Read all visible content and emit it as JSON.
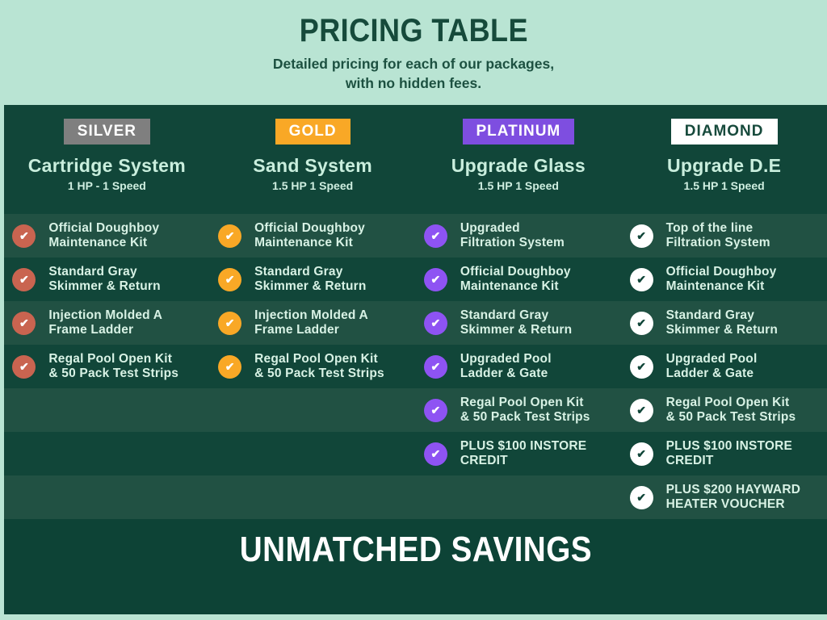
{
  "header": {
    "title": "PRICING TABLE",
    "subtitle_line1": "Detailed pricing for each of our packages,",
    "subtitle_line2": "with no hidden fees."
  },
  "banner": {
    "text": "UNMATCHED SAVINGS"
  },
  "icons": {
    "check": "✔"
  },
  "colors": {
    "page_bg": "#b9e4d3",
    "panel_bg": "#114639",
    "row_alt_bg": "#215143",
    "banner_bg": "#0d4336",
    "header_text": "#164a3b",
    "feature_text": "#d8f2e5",
    "silver_badge": "#7f7f7f",
    "gold_badge": "#f9a826",
    "platinum_badge": "#7e4ee0",
    "diamond_badge": "#ffffff",
    "silver_check": "#c96450",
    "gold_check": "#f9a826",
    "platinum_check": "#8e53f3",
    "diamond_check": "#ffffff"
  },
  "columns": [
    {
      "tier": "SILVER",
      "badge_style": "background:#7f7f7f;color:#ffffff",
      "check_style": "background:#c96450;color:#ffffff",
      "title": "Cartridge System",
      "subtitle": "1 HP - 1 Speed",
      "features": [
        {
          "line1": "Official Doughboy",
          "line2": "Maintenance Kit"
        },
        {
          "line1": "Standard Gray",
          "line2": "Skimmer & Return"
        },
        {
          "line1": "Injection Molded A",
          "line2": "Frame Ladder"
        },
        {
          "line1": "Regal Pool Open Kit",
          "line2": "& 50 Pack Test Strips"
        },
        null,
        null,
        null
      ]
    },
    {
      "tier": "GOLD",
      "badge_style": "background:#f9a826;color:#ffffff",
      "check_style": "background:#f9a826;color:#ffffff",
      "title": "Sand System",
      "subtitle": "1.5 HP 1 Speed",
      "features": [
        {
          "line1": "Official Doughboy",
          "line2": "Maintenance Kit"
        },
        {
          "line1": "Standard Gray",
          "line2": "Skimmer & Return"
        },
        {
          "line1": "Injection Molded A",
          "line2": "Frame Ladder"
        },
        {
          "line1": "Regal Pool Open Kit",
          "line2": "& 50 Pack Test Strips"
        },
        null,
        null,
        null
      ]
    },
    {
      "tier": "PLATINUM",
      "badge_style": "background:#7e4ee0;color:#ffffff",
      "check_style": "background:#8e53f3;color:#ffffff",
      "title": "Upgrade Glass",
      "subtitle": "1.5 HP 1 Speed",
      "features": [
        {
          "line1": "Upgraded",
          "line2": "Filtration System"
        },
        {
          "line1": "Official Doughboy",
          "line2": "Maintenance Kit"
        },
        {
          "line1": "Standard Gray",
          "line2": "Skimmer & Return"
        },
        {
          "line1": "Upgraded Pool",
          "line2": "Ladder & Gate"
        },
        {
          "line1": "Regal Pool Open Kit",
          "line2": "& 50 Pack Test Strips"
        },
        {
          "line1": "PLUS $100 INSTORE",
          "line2": "CREDIT"
        },
        null
      ]
    },
    {
      "tier": "DIAMOND",
      "badge_style": "background:#ffffff;color:#174a3c",
      "check_style": "background:#ffffff;color:#114639",
      "title": "Upgrade D.E",
      "subtitle": "1.5 HP 1 Speed",
      "features": [
        {
          "line1": "Top of the line",
          "line2": "Filtration System"
        },
        {
          "line1": "Official Doughboy",
          "line2": "Maintenance Kit"
        },
        {
          "line1": "Standard Gray",
          "line2": "Skimmer & Return"
        },
        {
          "line1": "Upgraded Pool",
          "line2": "Ladder & Gate"
        },
        {
          "line1": "Regal Pool Open Kit",
          "line2": "& 50 Pack Test Strips"
        },
        {
          "line1": "PLUS $100 INSTORE",
          "line2": "CREDIT"
        },
        {
          "line1": "PLUS $200 HAYWARD",
          "line2": "HEATER VOUCHER"
        }
      ]
    }
  ]
}
